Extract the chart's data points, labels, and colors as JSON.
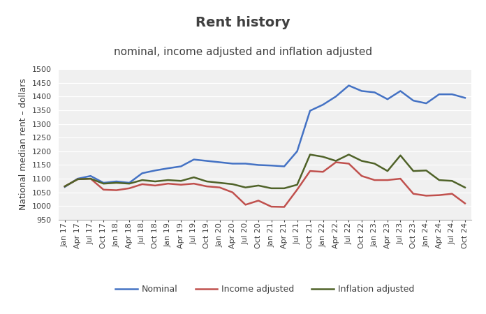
{
  "title": "Rent history",
  "subtitle": "nominal, income adjusted and inflation adjusted",
  "ylabel": "National median rent – dollars",
  "ylim": [
    950,
    1500
  ],
  "yticks": [
    950,
    1000,
    1050,
    1100,
    1150,
    1200,
    1250,
    1300,
    1350,
    1400,
    1450,
    1500
  ],
  "background_color": "#ffffff",
  "plot_bg_color": "#f0f0f0",
  "grid_color": "#ffffff",
  "x_labels": [
    "Jan 17",
    "Apr 17",
    "Jul 17",
    "Oct 17",
    "Jan 18",
    "Apr 18",
    "Jul 18",
    "Oct 18",
    "Jan 19",
    "Apr 19",
    "Jul 19",
    "Oct 19",
    "Jan 20",
    "Apr 20",
    "Jul 20",
    "Oct 20",
    "Jan 21",
    "Apr 21",
    "Jul 21",
    "Oct 21",
    "Jan 22",
    "Apr 22",
    "Jul 22",
    "Oct 22",
    "Jan 23",
    "Apr 23",
    "Jul 23",
    "Oct 23",
    "Jan 24",
    "Apr 24",
    "Jul 24",
    "Oct 24"
  ],
  "nominal": [
    1070,
    1100,
    1110,
    1085,
    1090,
    1085,
    1120,
    1130,
    1138,
    1145,
    1170,
    1165,
    1160,
    1155,
    1155,
    1150,
    1148,
    1145,
    1200,
    1348,
    1370,
    1400,
    1440,
    1420,
    1415,
    1390,
    1420,
    1385,
    1375,
    1408,
    1408,
    1395
  ],
  "income_adjusted": [
    1072,
    1098,
    1100,
    1060,
    1058,
    1065,
    1080,
    1075,
    1082,
    1078,
    1082,
    1072,
    1068,
    1050,
    1005,
    1020,
    998,
    997,
    1060,
    1128,
    1125,
    1160,
    1155,
    1110,
    1095,
    1095,
    1100,
    1045,
    1038,
    1040,
    1045,
    1010
  ],
  "inflation_adjusted": [
    1072,
    1098,
    1100,
    1082,
    1085,
    1082,
    1095,
    1090,
    1095,
    1092,
    1105,
    1090,
    1085,
    1080,
    1068,
    1075,
    1065,
    1065,
    1078,
    1188,
    1180,
    1165,
    1188,
    1165,
    1155,
    1128,
    1185,
    1128,
    1130,
    1095,
    1092,
    1068
  ],
  "nominal_color": "#4472c4",
  "income_color": "#c0504d",
  "inflation_color": "#4f6228",
  "line_width": 1.8,
  "title_fontsize": 14,
  "subtitle_fontsize": 11,
  "label_fontsize": 9,
  "tick_fontsize": 8,
  "legend_fontsize": 9,
  "text_color": "#404040"
}
